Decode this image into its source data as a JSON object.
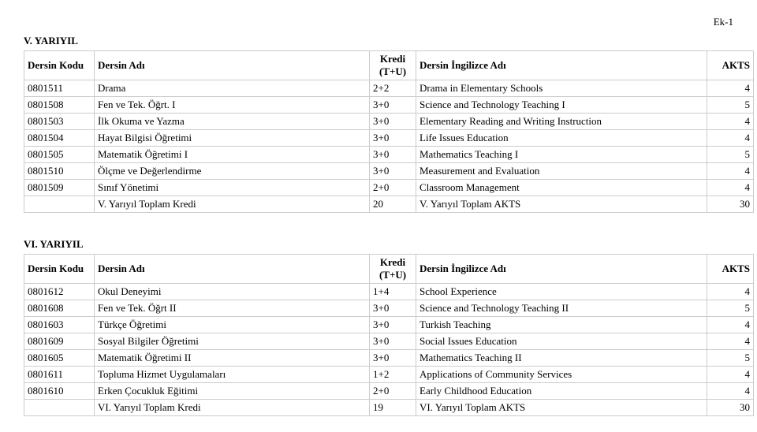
{
  "top_right_label": "Ek-1",
  "sections": [
    {
      "title": "V. YARIYIL",
      "headers": {
        "code": "Dersin Kodu",
        "name": "Dersin Adı",
        "kredi": "Kredi (T+U)",
        "eng": "Dersin İngilizce Adı",
        "akts": "AKTS"
      },
      "rows": [
        {
          "code": "0801511",
          "name": "Drama",
          "kredi": "2+2",
          "eng": "Drama in Elementary Schools",
          "akts": "4"
        },
        {
          "code": "0801508",
          "name": "Fen ve Tek. Öğrt. I",
          "kredi": "3+0",
          "eng": "Science and Technology Teaching I",
          "akts": "5"
        },
        {
          "code": "0801503",
          "name": "İlk Okuma ve Yazma",
          "kredi": "3+0",
          "eng": "Elementary Reading and Writing Instruction",
          "akts": "4"
        },
        {
          "code": "0801504",
          "name": "Hayat Bilgisi Öğretimi",
          "kredi": "3+0",
          "eng": "Life  Issues Education",
          "akts": "4"
        },
        {
          "code": "0801505",
          "name": "Matematik Öğretimi I",
          "kredi": "3+0",
          "eng": "Mathematics Teaching I",
          "akts": "5"
        },
        {
          "code": "0801510",
          "name": "Ölçme ve Değerlendirme",
          "kredi": "3+0",
          "eng": "Measurement and Evaluation",
          "akts": "4"
        },
        {
          "code": "0801509",
          "name": "Sınıf Yönetimi",
          "kredi": "2+0",
          "eng": "Classroom Management",
          "akts": "4"
        },
        {
          "code": "",
          "name": "V. Yarıyıl Toplam Kredi",
          "kredi": "20",
          "eng": "V. Yarıyıl Toplam AKTS",
          "akts": "30"
        }
      ]
    },
    {
      "title": "VI. YARIYIL",
      "headers": {
        "code": "Dersin Kodu",
        "name": "Dersin Adı",
        "kredi": "Kredi (T+U)",
        "eng": "Dersin İngilizce Adı",
        "akts": "AKTS"
      },
      "rows": [
        {
          "code": "0801612",
          "name": "Okul Deneyimi",
          "kredi": "1+4",
          "eng": "School Experience",
          "akts": "4"
        },
        {
          "code": "0801608",
          "name": "Fen ve Tek. Öğrt II",
          "kredi": "3+0",
          "eng": "Science and Technology Teaching II",
          "akts": "5"
        },
        {
          "code": "0801603",
          "name": "Türkçe Öğretimi",
          "kredi": "3+0",
          "eng": "Turkish Teaching",
          "akts": "4"
        },
        {
          "code": "0801609",
          "name": "Sosyal Bilgiler Öğretimi",
          "kredi": "3+0",
          "eng": " Social Issues Education",
          "akts": "4"
        },
        {
          "code": "0801605",
          "name": "Matematik Öğretimi II",
          "kredi": "3+0",
          "eng": "Mathematics Teaching II",
          "akts": "5"
        },
        {
          "code": "0801611",
          "name": "Topluma Hizmet Uygulamaları",
          "kredi": "1+2",
          "eng": "Applications of Community Services",
          "akts": "4"
        },
        {
          "code": "0801610",
          "name": "Erken Çocukluk Eğitimi",
          "kredi": "2+0",
          "eng": "Early Childhood Education",
          "akts": "4"
        },
        {
          "code": "",
          "name": "VI. Yarıyıl Toplam Kredi",
          "kredi": "19",
          "eng": "VI. Yarıyıl Toplam AKTS",
          "akts": "30"
        }
      ]
    }
  ]
}
